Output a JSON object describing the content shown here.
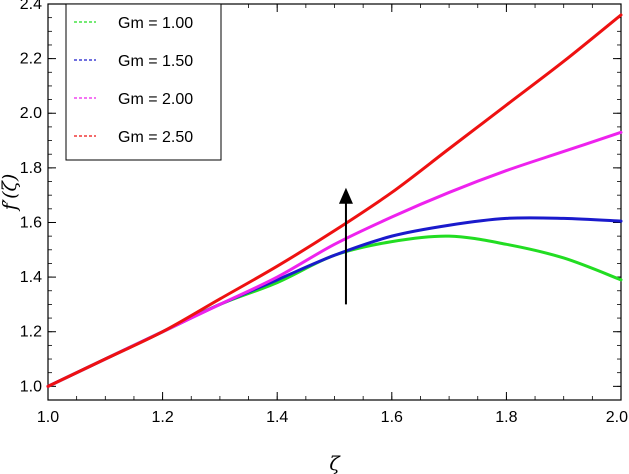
{
  "chart_data": {
    "type": "line",
    "title": "",
    "xlabel": "ζ",
    "ylabel": "f′(ζ)",
    "xlim": [
      1.0,
      2.0
    ],
    "ylim": [
      0.95,
      2.4
    ],
    "x_ticks": [
      "1.0",
      "1.2",
      "1.4",
      "1.6",
      "1.8",
      "2.0"
    ],
    "y_ticks": [
      "1.0",
      "1.2",
      "1.4",
      "1.6",
      "1.8",
      "2.0",
      "2.2",
      "2.4"
    ],
    "grid": false,
    "legend_position": "top-left",
    "x": [
      1.0,
      1.1,
      1.2,
      1.3,
      1.4,
      1.5,
      1.6,
      1.7,
      1.8,
      1.9,
      2.0
    ],
    "series": [
      {
        "name": "Gm = 1.00",
        "color": "#22dd22",
        "values": [
          1.0,
          1.1,
          1.2,
          1.3,
          1.38,
          1.48,
          1.53,
          1.55,
          1.52,
          1.47,
          1.39
        ]
      },
      {
        "name": "Gm = 1.50",
        "color": "#1a1acc",
        "values": [
          1.0,
          1.1,
          1.2,
          1.3,
          1.39,
          1.48,
          1.55,
          1.59,
          1.615,
          1.615,
          1.605
        ]
      },
      {
        "name": "Gm = 2.00",
        "color": "#ee22ee",
        "values": [
          1.0,
          1.1,
          1.2,
          1.3,
          1.4,
          1.52,
          1.62,
          1.71,
          1.79,
          1.86,
          1.93
        ]
      },
      {
        "name": "Gm = 2.50",
        "color": "#ee1111",
        "values": [
          1.0,
          1.1,
          1.2,
          1.32,
          1.44,
          1.57,
          1.71,
          1.87,
          2.03,
          2.19,
          2.36
        ]
      }
    ],
    "annotations": [
      {
        "type": "arrow",
        "x": 1.52,
        "from_y": 1.3,
        "to_y": 1.72,
        "direction": "up"
      }
    ]
  }
}
